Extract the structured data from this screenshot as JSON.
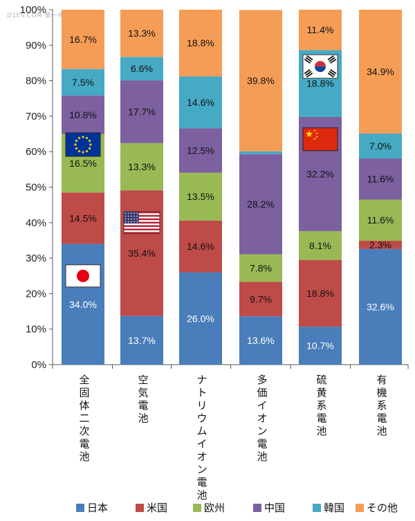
{
  "watermark": "D1EV.COM 第一电动",
  "chart_data": {
    "type": "bar",
    "stacked": true,
    "percent": true,
    "categories": [
      "全固体二次電池",
      "空気電池",
      "ナトリウムイオン電池",
      "多価イオン電池",
      "硫黄系電池",
      "有機系電池"
    ],
    "series": [
      {
        "name": "日本",
        "color": "#4a7ebb",
        "values": [
          34.0,
          13.7,
          26.0,
          13.6,
          10.7,
          32.6
        ]
      },
      {
        "name": "米国",
        "color": "#be4b48",
        "values": [
          14.5,
          35.4,
          14.6,
          9.7,
          18.8,
          2.3
        ]
      },
      {
        "name": "欧州",
        "color": "#98b954",
        "values": [
          16.5,
          13.3,
          13.5,
          7.8,
          8.1,
          11.6
        ]
      },
      {
        "name": "中国",
        "color": "#7d60a0",
        "values": [
          10.8,
          17.7,
          12.5,
          28.2,
          32.2,
          11.6
        ]
      },
      {
        "name": "韓国",
        "color": "#46aac5",
        "values": [
          7.5,
          6.6,
          14.6,
          0.8,
          18.8,
          7.0
        ]
      },
      {
        "name": "その他",
        "color": "#f59d56",
        "values": [
          16.7,
          13.3,
          18.8,
          39.8,
          11.4,
          34.9
        ]
      }
    ],
    "data_labels": [
      [
        "34.0%",
        "14.5%",
        "16.5%",
        "10.8%",
        "7.5%",
        "16.7%"
      ],
      [
        "13.7%",
        "35.4%",
        "13.3%",
        "17.7%",
        "6.6%",
        "13.3%"
      ],
      [
        "26.0%",
        "14.6%",
        "13.5%",
        "12.5%",
        "14.6%",
        "18.8%"
      ],
      [
        "13.6%",
        "9.7%",
        "7.8%",
        "28.2%",
        "",
        "39.8%"
      ],
      [
        "10.7%",
        "18.8%",
        "8.1%",
        "32.2%",
        "18.8%",
        "11.4%"
      ],
      [
        "32.6%",
        "2.3%",
        "11.6%",
        "11.6%",
        "7.0%",
        "34.9%"
      ]
    ],
    "yticks": [
      "0%",
      "10%",
      "20%",
      "30%",
      "40%",
      "50%",
      "60%",
      "70%",
      "80%",
      "90%",
      "100%"
    ],
    "ylim": [
      0,
      100
    ],
    "legend_position": "bottom",
    "grid": false,
    "flags": [
      {
        "country": "japan",
        "category_index": 0,
        "level_pct": 25
      },
      {
        "country": "eu",
        "category_index": 0,
        "level_pct": 62
      },
      {
        "country": "usa",
        "category_index": 1,
        "level_pct": 40
      },
      {
        "country": "korea",
        "category_index": 4,
        "level_pct": 84
      },
      {
        "country": "china",
        "category_index": 4,
        "level_pct": 63.5
      }
    ]
  }
}
